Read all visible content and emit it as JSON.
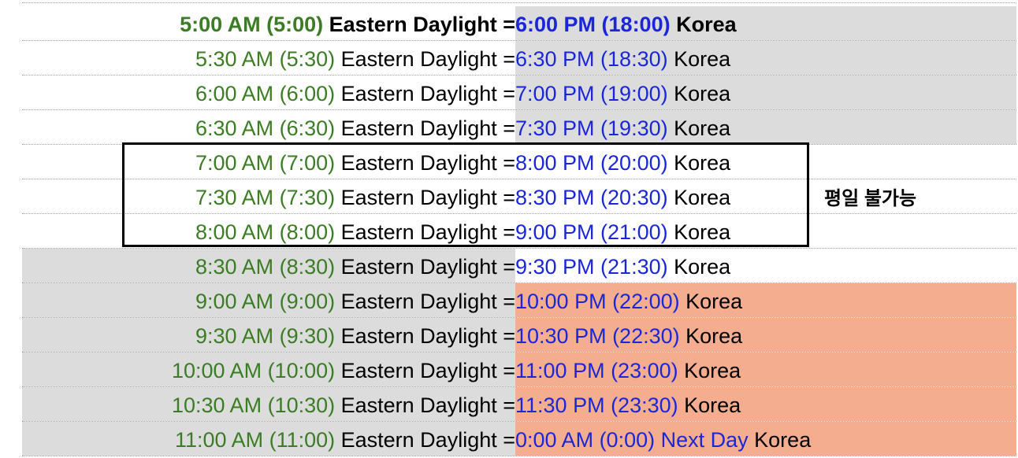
{
  "colors": {
    "gray": "#dcdcdc",
    "salmon": "#f4ad8f",
    "white": "#ffffff",
    "green_text": "#3a7d22",
    "blue_text": "#1a27d9"
  },
  "rows": [
    {
      "et": "5:00 AM (5:00)",
      "et_label": " Eastern Daylight =",
      "kr": "6:00 PM (18:00)",
      "kr_next": "",
      "kr_label": " Korea",
      "bold": true,
      "left_bg": "white",
      "right_bg": "gray"
    },
    {
      "et": "5:30 AM (5:30)",
      "et_label": " Eastern Daylight =",
      "kr": "6:30 PM (18:30)",
      "kr_next": "",
      "kr_label": " Korea",
      "bold": false,
      "left_bg": "white",
      "right_bg": "gray"
    },
    {
      "et": "6:00 AM (6:00)",
      "et_label": " Eastern Daylight =",
      "kr": "7:00 PM (19:00)",
      "kr_next": "",
      "kr_label": " Korea",
      "bold": false,
      "left_bg": "white",
      "right_bg": "gray"
    },
    {
      "et": "6:30 AM (6:30)",
      "et_label": " Eastern Daylight =",
      "kr": "7:30 PM (19:30)",
      "kr_next": "",
      "kr_label": " Korea",
      "bold": false,
      "left_bg": "white",
      "right_bg": "gray"
    },
    {
      "et": "7:00 AM (7:00)",
      "et_label": " Eastern Daylight =",
      "kr": "8:00 PM (20:00)",
      "kr_next": "",
      "kr_label": " Korea",
      "bold": false,
      "left_bg": "white",
      "right_bg": "white"
    },
    {
      "et": "7:30 AM (7:30)",
      "et_label": " Eastern Daylight =",
      "kr": "8:30 PM (20:30)",
      "kr_next": "",
      "kr_label": " Korea",
      "bold": false,
      "left_bg": "white",
      "right_bg": "white"
    },
    {
      "et": "8:00 AM (8:00)",
      "et_label": " Eastern Daylight =",
      "kr": "9:00 PM (21:00)",
      "kr_next": "",
      "kr_label": " Korea",
      "bold": false,
      "left_bg": "white",
      "right_bg": "white"
    },
    {
      "et": "8:30 AM (8:30)",
      "et_label": " Eastern Daylight =",
      "kr": "9:30 PM (21:30)",
      "kr_next": "",
      "kr_label": " Korea",
      "bold": false,
      "left_bg": "gray",
      "right_bg": "white"
    },
    {
      "et": "9:00 AM (9:00)",
      "et_label": " Eastern Daylight =",
      "kr": "10:00 PM (22:00)",
      "kr_next": "",
      "kr_label": " Korea",
      "bold": false,
      "left_bg": "gray",
      "right_bg": "salmon"
    },
    {
      "et": "9:30 AM (9:30)",
      "et_label": " Eastern Daylight =",
      "kr": "10:30 PM (22:30)",
      "kr_next": "",
      "kr_label": " Korea",
      "bold": false,
      "left_bg": "gray",
      "right_bg": "salmon"
    },
    {
      "et": "10:00 AM (10:00)",
      "et_label": " Eastern Daylight =",
      "kr": "11:00 PM (23:00)",
      "kr_next": "",
      "kr_label": " Korea",
      "bold": false,
      "left_bg": "gray",
      "right_bg": "salmon"
    },
    {
      "et": "10:30 AM (10:30)",
      "et_label": " Eastern Daylight =",
      "kr": "11:30 PM (23:30)",
      "kr_next": "",
      "kr_label": " Korea",
      "bold": false,
      "left_bg": "gray",
      "right_bg": "salmon"
    },
    {
      "et": "11:00 AM (11:00)",
      "et_label": " Eastern Daylight =",
      "kr": "0:00 AM (0:00)",
      "kr_next": " Next Day",
      "kr_label": " Korea",
      "bold": false,
      "left_bg": "gray",
      "right_bg": "salmon"
    }
  ],
  "annotation": {
    "note": "평일 불가능"
  }
}
